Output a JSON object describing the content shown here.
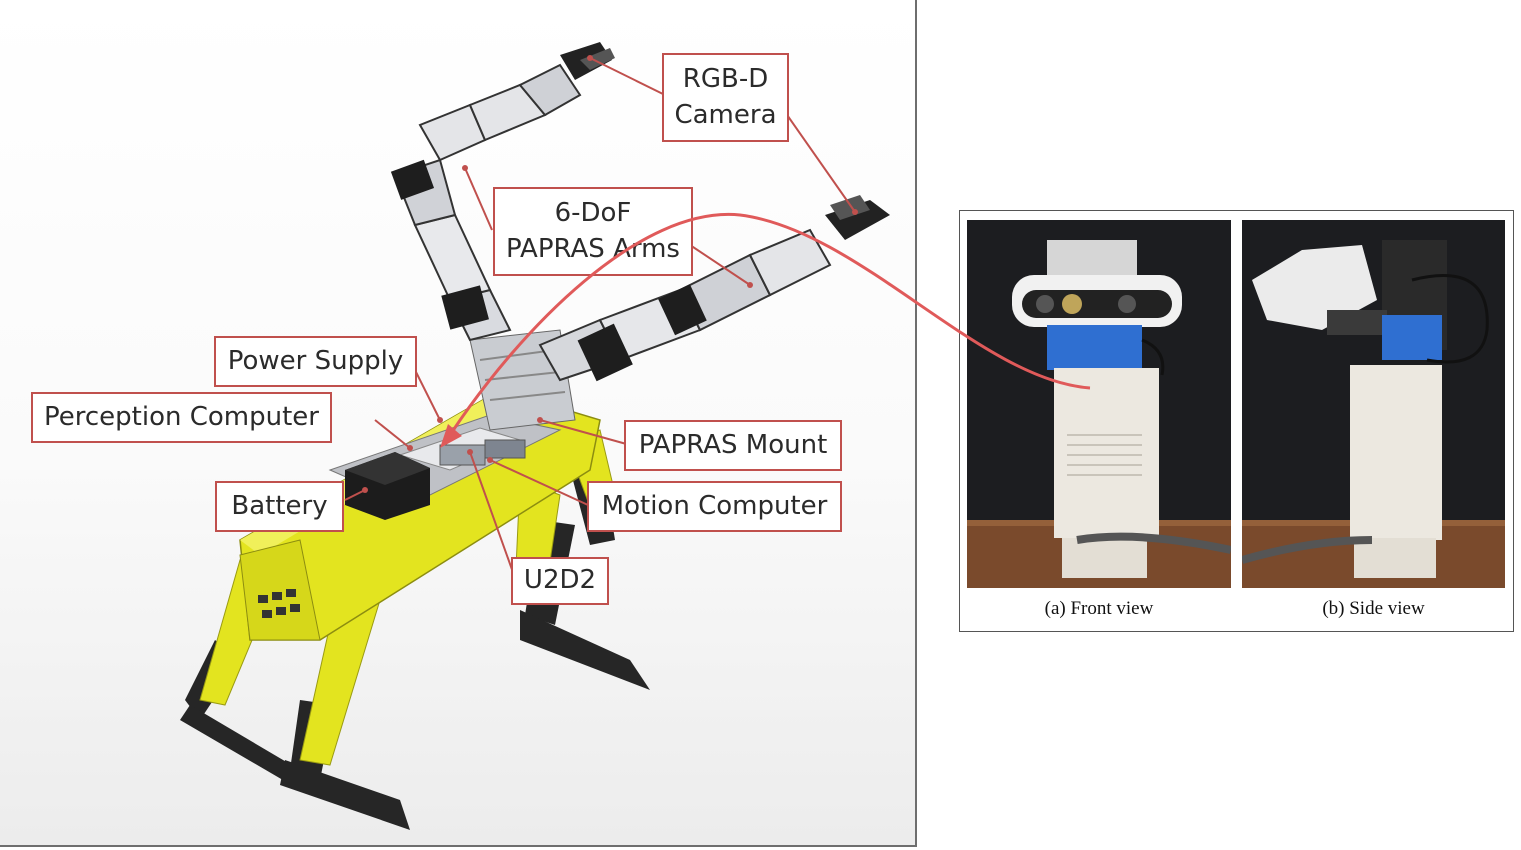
{
  "labels": {
    "rgbd": [
      "RGB-D",
      "Camera"
    ],
    "arms": [
      "6-DoF",
      "PAPRAS Arms"
    ],
    "power_supply": "Power Supply",
    "perception_computer": "Perception Computer",
    "battery": "Battery",
    "papras_mount": "PAPRAS Mount",
    "motion_computer": "Motion Computer",
    "u2d2": "U2D2"
  },
  "captions": {
    "front": "(a) Front view",
    "side": "(b) Side view"
  },
  "colors": {
    "callout_border": "#c0504d",
    "pointer_arrow": "#e05a5a",
    "robot_body": "#e3e41f",
    "robot_dark": "#2a2a2a"
  }
}
